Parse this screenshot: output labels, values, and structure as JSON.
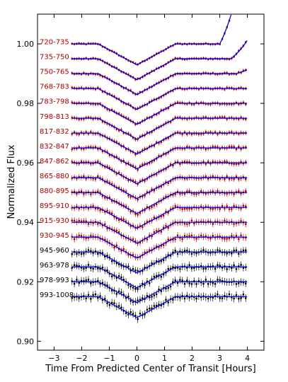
{
  "chart_data": {
    "type": "line",
    "title": "",
    "xlabel": "Time From Predicted Center of Transit [Hours]",
    "ylabel": "Normalized Flux",
    "xlim": [
      -3.6,
      4.6
    ],
    "ylim": [
      0.897,
      1.01
    ],
    "xticks": [
      -3,
      -2,
      -1,
      0,
      1,
      2,
      3,
      4
    ],
    "xtick_labels": [
      "−3",
      "−2",
      "−1",
      "0",
      "1",
      "2",
      "3",
      "4"
    ],
    "yticks": [
      0.9,
      0.92,
      0.94,
      0.96,
      0.98,
      1.0
    ],
    "ytick_labels": [
      "0.90",
      "0.92",
      "0.94",
      "0.96",
      "0.98",
      "1.00"
    ],
    "grid": false,
    "transit": {
      "ingress_start": -1.4,
      "ingress_end": -1.05,
      "egress_start": 1.05,
      "egress_end": 1.4,
      "depth": 0.0145
    },
    "model_color": "#0000dd",
    "colors": {
      "red": "#aa0000",
      "black": "#000000"
    },
    "series": [
      {
        "name": "720-735",
        "baseline": 1.0,
        "color": "red",
        "ramp_start": 3.0,
        "ramp_rate": 0.018
      },
      {
        "name": "735-750",
        "baseline": 0.995,
        "color": "red",
        "ramp_start": 3.4,
        "ramp_rate": 0.007
      },
      {
        "name": "750-765",
        "baseline": 0.99,
        "color": "red",
        "ramp_start": 3.6,
        "ramp_rate": 0.0025
      },
      {
        "name": "768-783",
        "baseline": 0.985,
        "color": "red"
      },
      {
        "name": "783-798",
        "baseline": 0.98,
        "color": "red"
      },
      {
        "name": "798-813",
        "baseline": 0.975,
        "color": "red"
      },
      {
        "name": "817-832",
        "baseline": 0.97,
        "color": "red"
      },
      {
        "name": "832-847",
        "baseline": 0.965,
        "color": "red"
      },
      {
        "name": "847-862",
        "baseline": 0.96,
        "color": "red"
      },
      {
        "name": "865-880",
        "baseline": 0.955,
        "color": "red"
      },
      {
        "name": "880-895",
        "baseline": 0.95,
        "color": "red"
      },
      {
        "name": "895-910",
        "baseline": 0.945,
        "color": "red"
      },
      {
        "name": "915-930",
        "baseline": 0.94,
        "color": "red"
      },
      {
        "name": "930-945",
        "baseline": 0.935,
        "color": "red"
      },
      {
        "name": "945-960",
        "baseline": 0.93,
        "color": "black"
      },
      {
        "name": "963-978",
        "baseline": 0.925,
        "color": "black"
      },
      {
        "name": "978-993",
        "baseline": 0.92,
        "color": "black"
      },
      {
        "name": "993-1008",
        "baseline": 0.915,
        "color": "black"
      }
    ]
  }
}
